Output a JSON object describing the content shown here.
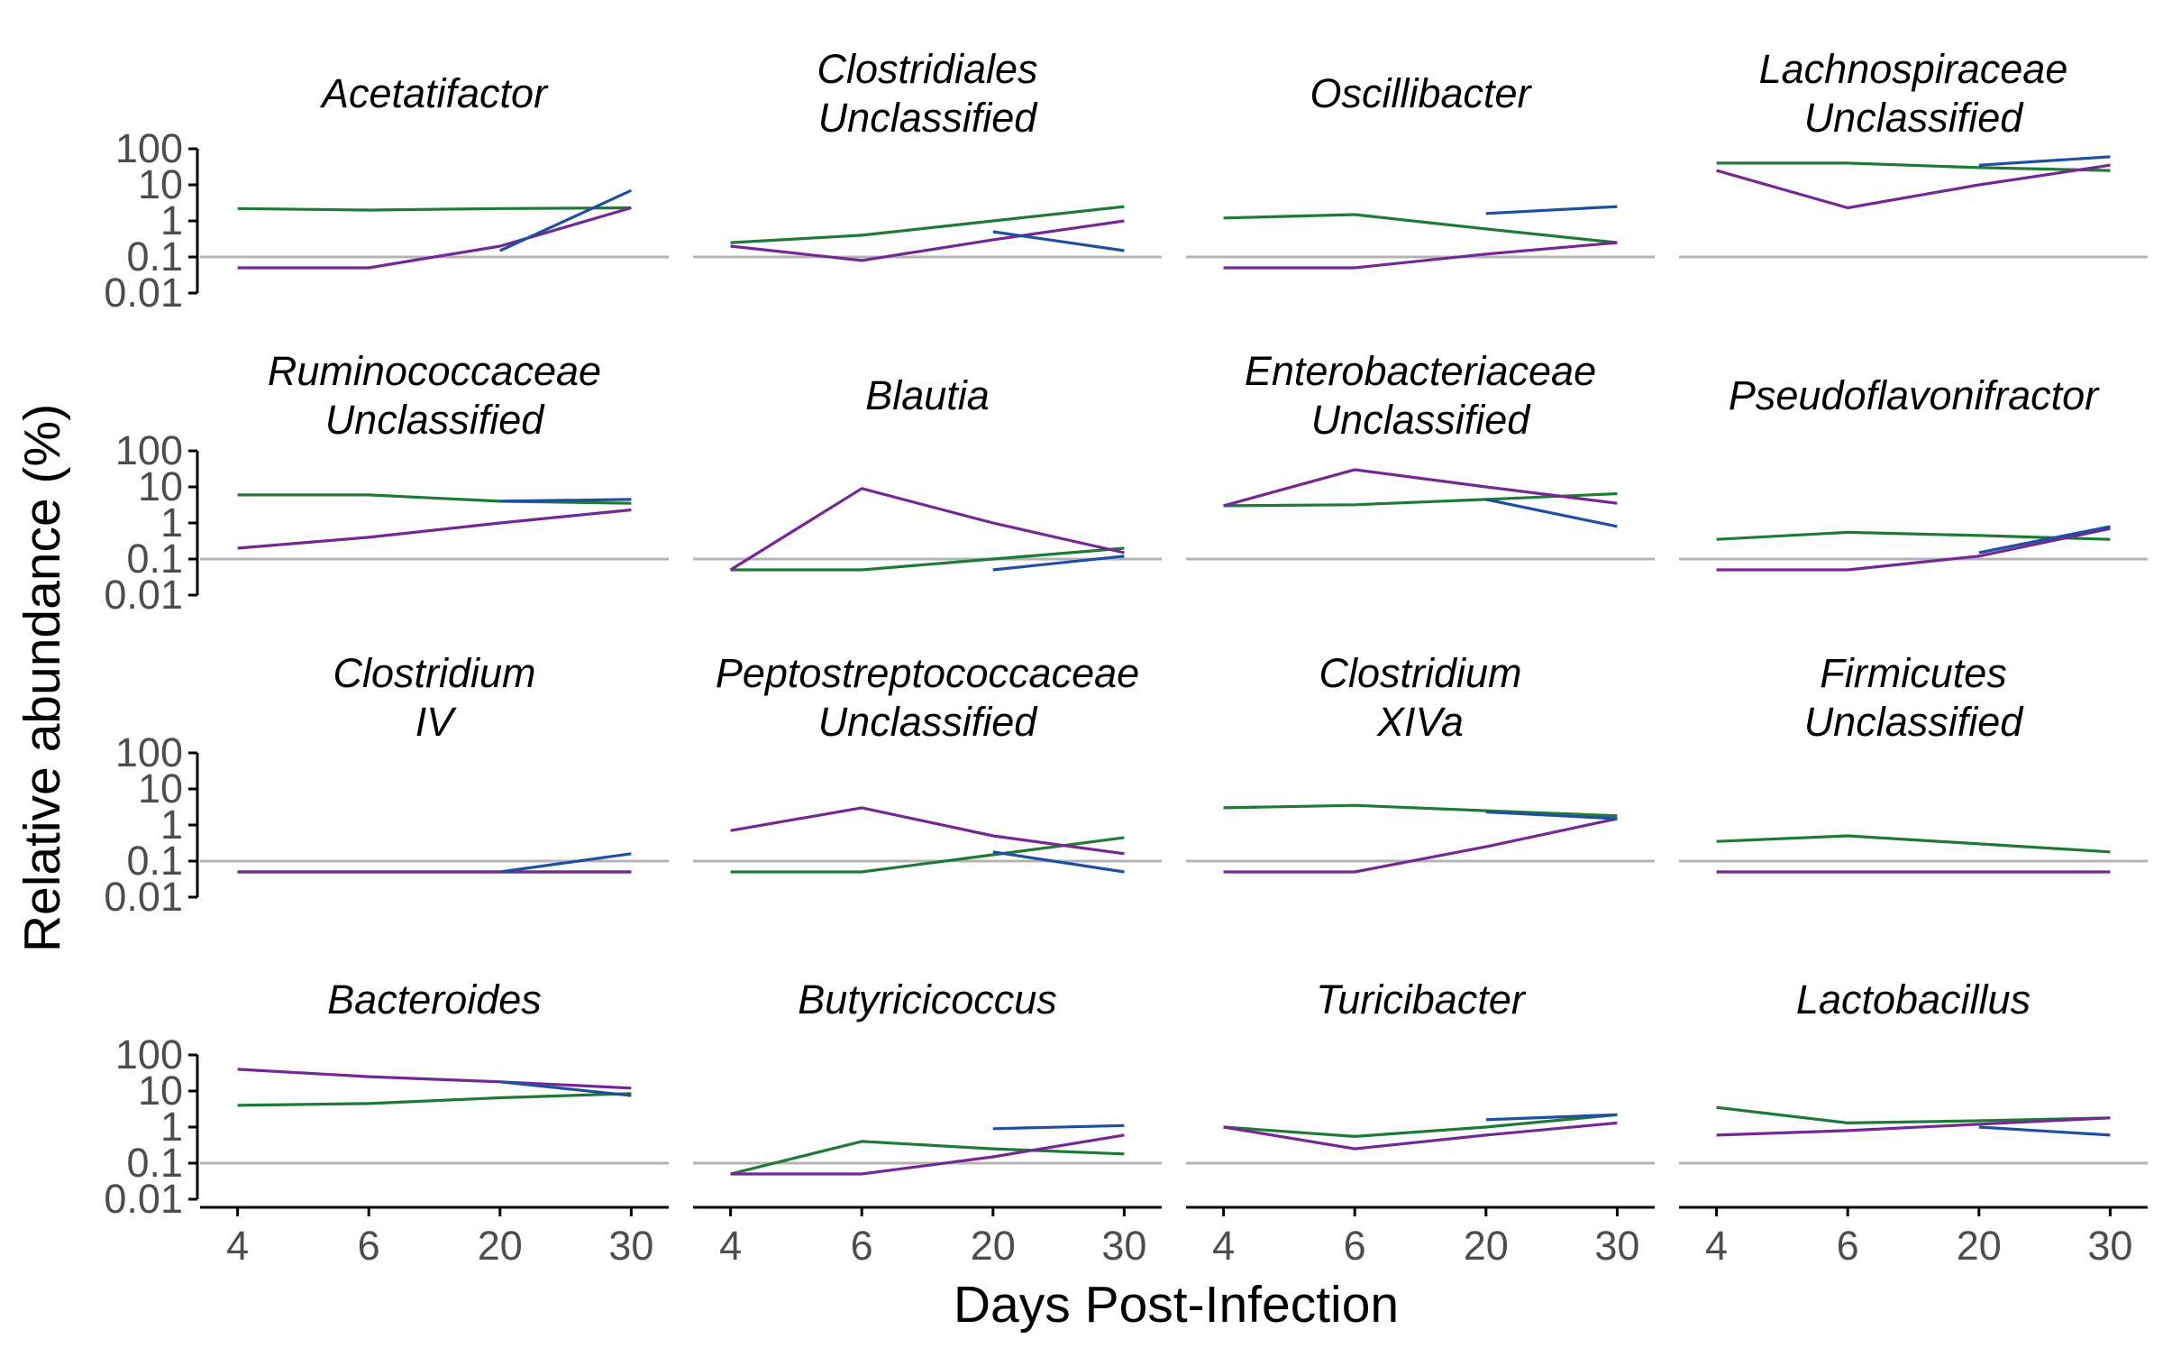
{
  "chart_data": {
    "type": "line",
    "facet_layout": "4x4",
    "xlabel": "Days Post-Infection",
    "ylabel": "Relative abundance (%)",
    "x_ticks": [
      "4",
      "6",
      "20",
      "30"
    ],
    "y_scale": "log10",
    "y_ticks": [
      "0.01",
      "0.1",
      "1",
      "10",
      "100"
    ],
    "y_tick_values": [
      0.01,
      0.1,
      1,
      10,
      100
    ],
    "ylim": [
      0.01,
      100
    ],
    "reference_line": 0.1,
    "colors": {
      "green": "#1f7a35",
      "purple": "#752793",
      "blue": "#1f4fa0",
      "reference": "#b3b3b3",
      "axis": "#000000"
    },
    "panels": [
      {
        "title": [
          "Acetatifactor"
        ],
        "series": [
          {
            "color": "green",
            "x": [
              "4",
              "6",
              "20",
              "30"
            ],
            "values": [
              2.2,
              2.0,
              2.2,
              2.3
            ]
          },
          {
            "color": "purple",
            "x": [
              "4",
              "6",
              "20",
              "30"
            ],
            "values": [
              0.05,
              0.05,
              0.2,
              2.3
            ]
          },
          {
            "color": "blue",
            "x": [
              "20",
              "30"
            ],
            "values": [
              0.15,
              7.0
            ]
          }
        ]
      },
      {
        "title": [
          "Clostridiales",
          "Unclassified"
        ],
        "series": [
          {
            "color": "green",
            "x": [
              "4",
              "6",
              "20",
              "30"
            ],
            "values": [
              0.25,
              0.4,
              1.0,
              2.5
            ]
          },
          {
            "color": "purple",
            "x": [
              "4",
              "6",
              "20",
              "30"
            ],
            "values": [
              0.2,
              0.08,
              0.3,
              1.0
            ]
          },
          {
            "color": "blue",
            "x": [
              "20",
              "30"
            ],
            "values": [
              0.5,
              0.15
            ]
          }
        ]
      },
      {
        "title": [
          "Oscillibacter"
        ],
        "series": [
          {
            "color": "green",
            "x": [
              "4",
              "6",
              "20",
              "30"
            ],
            "values": [
              1.2,
              1.5,
              0.6,
              0.25
            ]
          },
          {
            "color": "purple",
            "x": [
              "4",
              "6",
              "20",
              "30"
            ],
            "values": [
              0.05,
              0.05,
              0.12,
              0.25
            ]
          },
          {
            "color": "blue",
            "x": [
              "20",
              "30"
            ],
            "values": [
              1.6,
              2.5
            ]
          }
        ]
      },
      {
        "title": [
          "Lachnospiraceae",
          "Unclassified"
        ],
        "series": [
          {
            "color": "green",
            "x": [
              "4",
              "6",
              "20",
              "30"
            ],
            "values": [
              40,
              40,
              30,
              25
            ]
          },
          {
            "color": "purple",
            "x": [
              "4",
              "6",
              "20",
              "30"
            ],
            "values": [
              25,
              2.3,
              10,
              35
            ]
          },
          {
            "color": "blue",
            "x": [
              "20",
              "30"
            ],
            "values": [
              35,
              60
            ]
          }
        ]
      },
      {
        "title": [
          "Ruminococcaceae",
          "Unclassified"
        ],
        "series": [
          {
            "color": "green",
            "x": [
              "4",
              "6",
              "20",
              "30"
            ],
            "values": [
              6.0,
              6.0,
              4.0,
              3.5
            ]
          },
          {
            "color": "purple",
            "x": [
              "4",
              "6",
              "20",
              "30"
            ],
            "values": [
              0.2,
              0.4,
              1.0,
              2.3
            ]
          },
          {
            "color": "blue",
            "x": [
              "20",
              "30"
            ],
            "values": [
              4.0,
              4.5
            ]
          }
        ]
      },
      {
        "title": [
          "Blautia"
        ],
        "series": [
          {
            "color": "green",
            "x": [
              "4",
              "6",
              "20",
              "30"
            ],
            "values": [
              0.05,
              0.05,
              0.1,
              0.2
            ]
          },
          {
            "color": "purple",
            "x": [
              "4",
              "6",
              "20",
              "30"
            ],
            "values": [
              0.05,
              9.0,
              1.0,
              0.15
            ]
          },
          {
            "color": "blue",
            "x": [
              "20",
              "30"
            ],
            "values": [
              0.05,
              0.12
            ]
          }
        ]
      },
      {
        "title": [
          "Enterobacteriaceae",
          "Unclassified"
        ],
        "series": [
          {
            "color": "green",
            "x": [
              "4",
              "6",
              "20",
              "30"
            ],
            "values": [
              3.0,
              3.2,
              4.5,
              6.5
            ]
          },
          {
            "color": "purple",
            "x": [
              "4",
              "6",
              "20",
              "30"
            ],
            "values": [
              3.0,
              30,
              10,
              3.5
            ]
          },
          {
            "color": "blue",
            "x": [
              "20",
              "30"
            ],
            "values": [
              4.5,
              0.8
            ]
          }
        ]
      },
      {
        "title": [
          "Pseudoflavonifractor"
        ],
        "series": [
          {
            "color": "green",
            "x": [
              "4",
              "6",
              "20",
              "30"
            ],
            "values": [
              0.35,
              0.55,
              0.45,
              0.35
            ]
          },
          {
            "color": "purple",
            "x": [
              "4",
              "6",
              "20",
              "30"
            ],
            "values": [
              0.05,
              0.05,
              0.12,
              0.7
            ]
          },
          {
            "color": "blue",
            "x": [
              "20",
              "30"
            ],
            "values": [
              0.15,
              0.8
            ]
          }
        ]
      },
      {
        "title": [
          "Clostridium",
          "IV"
        ],
        "series": [
          {
            "color": "green",
            "x": [
              "4",
              "6",
              "20",
              "30"
            ],
            "values": [
              0.05,
              0.05,
              0.05,
              0.05
            ]
          },
          {
            "color": "purple",
            "x": [
              "4",
              "6",
              "20",
              "30"
            ],
            "values": [
              0.05,
              0.05,
              0.05,
              0.05
            ]
          },
          {
            "color": "blue",
            "x": [
              "20",
              "30"
            ],
            "values": [
              0.05,
              0.16
            ]
          }
        ]
      },
      {
        "title": [
          "Peptostreptococcaceae",
          "Unclassified"
        ],
        "series": [
          {
            "color": "green",
            "x": [
              "4",
              "6",
              "20",
              "30"
            ],
            "values": [
              0.05,
              0.05,
              0.15,
              0.45
            ]
          },
          {
            "color": "purple",
            "x": [
              "4",
              "6",
              "20",
              "30"
            ],
            "values": [
              0.7,
              3.0,
              0.5,
              0.16
            ]
          },
          {
            "color": "blue",
            "x": [
              "20",
              "30"
            ],
            "values": [
              0.18,
              0.05
            ]
          }
        ]
      },
      {
        "title": [
          "Clostridium",
          "XIVa"
        ],
        "series": [
          {
            "color": "green",
            "x": [
              "4",
              "6",
              "20",
              "30"
            ],
            "values": [
              3.0,
              3.5,
              2.5,
              1.8
            ]
          },
          {
            "color": "purple",
            "x": [
              "4",
              "6",
              "20",
              "30"
            ],
            "values": [
              0.05,
              0.05,
              0.25,
              1.5
            ]
          },
          {
            "color": "blue",
            "x": [
              "20",
              "30"
            ],
            "values": [
              2.3,
              1.5
            ]
          }
        ]
      },
      {
        "title": [
          "Firmicutes",
          "Unclassified"
        ],
        "series": [
          {
            "color": "green",
            "x": [
              "4",
              "6",
              "20",
              "30"
            ],
            "values": [
              0.35,
              0.5,
              0.3,
              0.18
            ]
          },
          {
            "color": "purple",
            "x": [
              "4",
              "6",
              "20",
              "30"
            ],
            "values": [
              0.05,
              0.05,
              0.05,
              0.05
            ]
          }
        ]
      },
      {
        "title": [
          "Bacteroides"
        ],
        "series": [
          {
            "color": "green",
            "x": [
              "4",
              "6",
              "20",
              "30"
            ],
            "values": [
              4.0,
              4.5,
              6.5,
              8.5
            ]
          },
          {
            "color": "purple",
            "x": [
              "4",
              "6",
              "20",
              "30"
            ],
            "values": [
              40,
              25,
              18,
              12
            ]
          },
          {
            "color": "blue",
            "x": [
              "20",
              "30"
            ],
            "values": [
              18,
              7.5
            ]
          }
        ]
      },
      {
        "title": [
          "Butyricicoccus"
        ],
        "series": [
          {
            "color": "green",
            "x": [
              "4",
              "6",
              "20",
              "30"
            ],
            "values": [
              0.05,
              0.4,
              0.25,
              0.18
            ]
          },
          {
            "color": "purple",
            "x": [
              "4",
              "6",
              "20",
              "30"
            ],
            "values": [
              0.05,
              0.05,
              0.15,
              0.6
            ]
          },
          {
            "color": "blue",
            "x": [
              "20",
              "30"
            ],
            "values": [
              0.9,
              1.1
            ]
          }
        ]
      },
      {
        "title": [
          "Turicibacter"
        ],
        "series": [
          {
            "color": "green",
            "x": [
              "4",
              "6",
              "20",
              "30"
            ],
            "values": [
              1.0,
              0.55,
              1.0,
              2.2
            ]
          },
          {
            "color": "purple",
            "x": [
              "4",
              "6",
              "20",
              "30"
            ],
            "values": [
              1.0,
              0.25,
              0.6,
              1.3
            ]
          },
          {
            "color": "blue",
            "x": [
              "20",
              "30"
            ],
            "values": [
              1.6,
              2.2
            ]
          }
        ]
      },
      {
        "title": [
          "Lactobacillus"
        ],
        "series": [
          {
            "color": "green",
            "x": [
              "4",
              "6",
              "20",
              "30"
            ],
            "values": [
              3.5,
              1.3,
              1.5,
              1.8
            ]
          },
          {
            "color": "purple",
            "x": [
              "4",
              "6",
              "20",
              "30"
            ],
            "values": [
              0.6,
              0.8,
              1.2,
              1.8
            ]
          },
          {
            "color": "blue",
            "x": [
              "20",
              "30"
            ],
            "values": [
              1.0,
              0.6
            ]
          }
        ]
      }
    ]
  }
}
